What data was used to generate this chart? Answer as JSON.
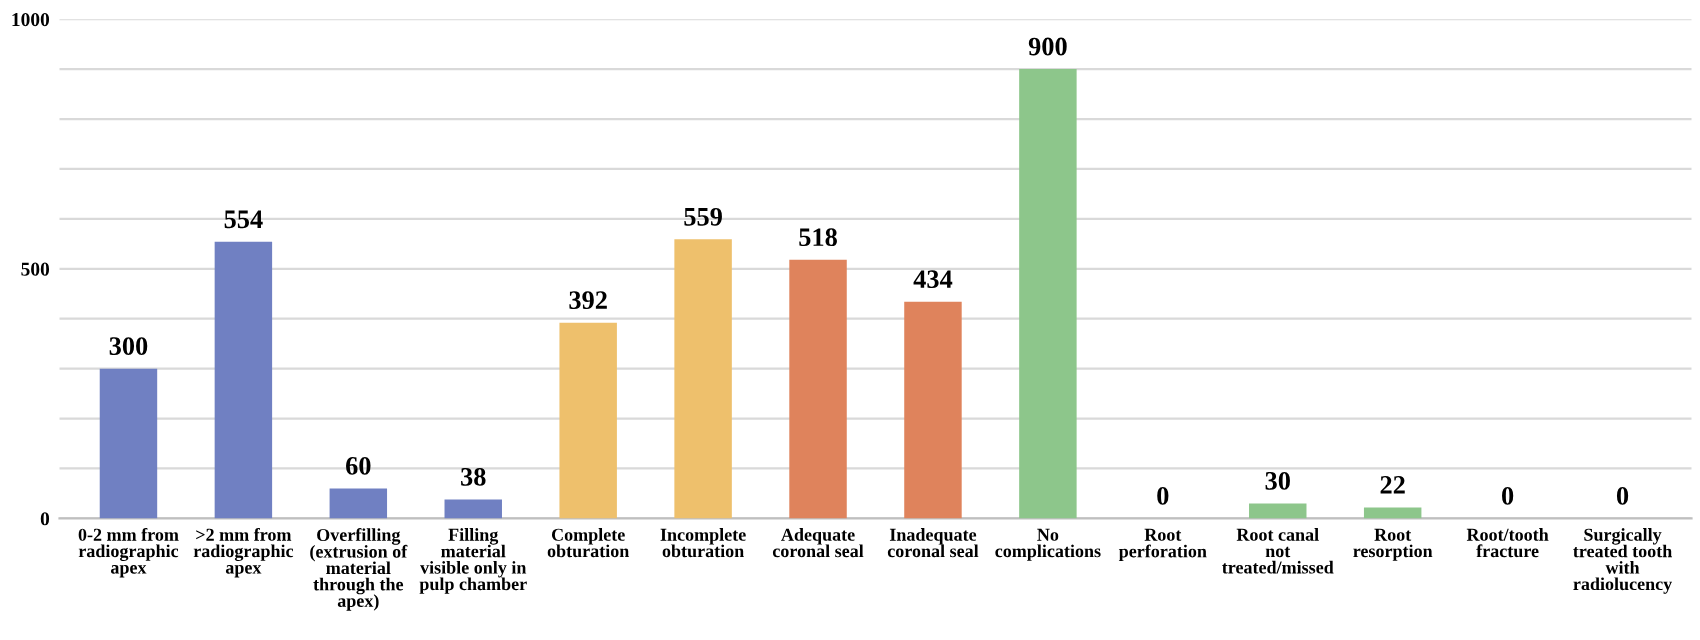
{
  "chart_data": {
    "type": "bar",
    "categories": [
      "0-2 mm from radiographic apex",
      ">2 mm from radiographic apex",
      "Overfilling (extrusion of material through the apex)",
      "Filling material visible only in pulp chamber",
      "Complete obturation",
      "Incomplete obturation",
      "Adequate coronal seal",
      "Inadequate coronal seal",
      "No complications",
      "Root perforation",
      "Root canal not treated/missed",
      "Root resorption",
      "Root/tooth fracture",
      "Surgically treated tooth with radiolucency"
    ],
    "values": [
      300,
      554,
      60,
      38,
      392,
      559,
      518,
      434,
      900,
      0,
      30,
      22,
      0,
      0
    ],
    "colors": [
      "#7080c2",
      "#7080c2",
      "#7080c2",
      "#7080c2",
      "#eec06c",
      "#eec06c",
      "#df835c",
      "#df835c",
      "#8dc68b",
      "#8dc68b",
      "#8dc68b",
      "#8dc68b",
      "#8dc68b",
      "#8dc68b"
    ],
    "ylim": [
      0,
      1000
    ],
    "yticks": [
      0,
      {
        "value": 100,
        "label": null
      },
      {
        "value": 200,
        "label": null
      },
      {
        "value": 300,
        "label": null
      },
      {
        "value": 400,
        "label": null
      },
      500,
      {
        "value": 600,
        "label": null
      },
      {
        "value": 700,
        "label": null
      },
      {
        "value": 800,
        "label": null
      },
      {
        "value": 900,
        "label": null
      },
      1000
    ],
    "grid": "y",
    "data_labels": true
  }
}
